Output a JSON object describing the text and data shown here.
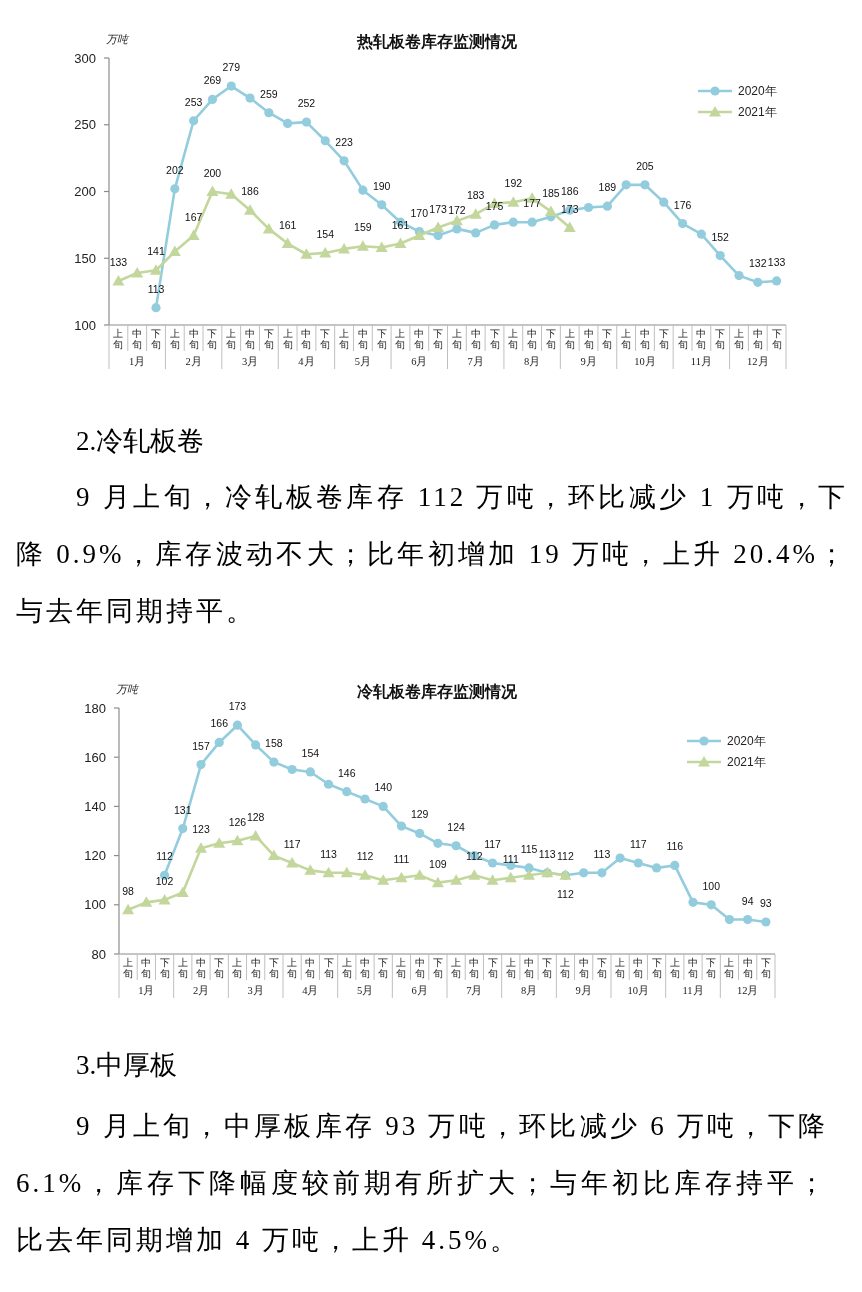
{
  "chart_data": [
    {
      "type": "line",
      "title": "热轧板卷库存监测情况",
      "ylabel": "万吨",
      "legend": "top right",
      "categories": [
        "上旬",
        "中旬",
        "下旬",
        "上旬",
        "中旬",
        "下旬",
        "上旬",
        "中旬",
        "下旬",
        "上旬",
        "中旬",
        "下旬",
        "上旬",
        "中旬",
        "下旬",
        "上旬",
        "中旬",
        "下旬",
        "上旬",
        "中旬",
        "下旬",
        "上旬",
        "中旬",
        "下旬",
        "上旬",
        "中旬",
        "下旬",
        "上旬",
        "中旬",
        "下旬",
        "上旬",
        "中旬",
        "下旬",
        "上旬",
        "中旬",
        "下旬"
      ],
      "ylim": [
        100,
        300
      ],
      "yticks": [
        100,
        150,
        200,
        250,
        300
      ],
      "series": [
        {
          "name": "2020年",
          "color": "#93cddd",
          "marker": "circle",
          "values": [
            null,
            null,
            113,
            202,
            253,
            269,
            279,
            270,
            259,
            251,
            252,
            238,
            223,
            201,
            190,
            177,
            170,
            167,
            172,
            169,
            175,
            177,
            177,
            181,
            186,
            188,
            189,
            205,
            205,
            192,
            176,
            168,
            152,
            137,
            132,
            133
          ],
          "value_labels": [
            null,
            null,
            "113",
            "202",
            "253",
            "269",
            "279",
            null,
            "259",
            null,
            "252",
            null,
            "223",
            null,
            "190",
            null,
            "170",
            null,
            "172",
            null,
            "175",
            null,
            "177",
            null,
            "186",
            null,
            "189",
            null,
            "205",
            null,
            "176",
            null,
            "152",
            null,
            "132",
            "133"
          ]
        },
        {
          "name": "2021年",
          "color": "#c3d69b",
          "marker": "triangle",
          "values": [
            133,
            139,
            141,
            155,
            167,
            200,
            198,
            186,
            172,
            161,
            153,
            154,
            157,
            159,
            158,
            161,
            167,
            173,
            178,
            183,
            191,
            192,
            195,
            185,
            173,
            null,
            null,
            null,
            null,
            null,
            null,
            null,
            null,
            null,
            null,
            null
          ],
          "value_labels": [
            "133",
            null,
            "141",
            null,
            "167",
            "200",
            null,
            "186",
            null,
            "161",
            null,
            "154",
            null,
            "159",
            null,
            "161",
            null,
            "173",
            null,
            "183",
            null,
            "192",
            null,
            "185",
            "173",
            null,
            null,
            null,
            null,
            null,
            null,
            null,
            null,
            null,
            null,
            null
          ]
        }
      ],
      "annotations": [
        "1月",
        "2月",
        "3月",
        "4月",
        "5月",
        "6月",
        "7月",
        "8月",
        "9月",
        "10月",
        "11月",
        "12月",
        "2.冷轧板卷",
        "9 月上旬，冷轧板卷库存 112 万吨，环比减少 1 万吨，下降 0.9%，库存波动不大；比年初增加 19 万吨，上升 20.4%；与去年同期持平。"
      ]
    },
    {
      "type": "line",
      "title": "冷轧板卷库存监测情况",
      "ylabel": "万吨",
      "legend": "top right",
      "categories": [
        "上旬",
        "中旬",
        "下旬",
        "上旬",
        "中旬",
        "下旬",
        "上旬",
        "中旬",
        "下旬",
        "上旬",
        "中旬",
        "下旬",
        "上旬",
        "中旬",
        "下旬",
        "上旬",
        "中旬",
        "下旬",
        "上旬",
        "中旬",
        "下旬",
        "上旬",
        "中旬",
        "下旬",
        "上旬",
        "中旬",
        "下旬",
        "上旬",
        "中旬",
        "下旬",
        "上旬",
        "中旬",
        "下旬",
        "上旬",
        "中旬",
        "下旬"
      ],
      "ylim": [
        80,
        180
      ],
      "yticks": [
        80,
        100,
        120,
        140,
        160,
        180
      ],
      "series": [
        {
          "name": "2020年",
          "color": "#93cddd",
          "marker": "circle",
          "values": [
            null,
            null,
            112,
            131,
            157,
            166,
            173,
            165,
            158,
            155,
            154,
            149,
            146,
            143,
            140,
            132,
            129,
            125,
            124,
            120,
            117,
            116,
            115,
            113,
            112,
            113,
            113,
            119,
            117,
            115,
            116,
            101,
            100,
            94,
            94,
            93
          ],
          "value_labels": [
            null,
            null,
            "112",
            "131",
            "157",
            "166",
            "173",
            null,
            "158",
            null,
            "154",
            null,
            "146",
            null,
            "140",
            null,
            "129",
            null,
            "124",
            null,
            "117",
            null,
            "115",
            null,
            "112",
            null,
            "113",
            null,
            "117",
            null,
            "116",
            null,
            "100",
            null,
            "94",
            "93"
          ]
        },
        {
          "name": "2021年",
          "color": "#c3d69b",
          "marker": "triangle",
          "values": [
            98,
            101,
            102,
            105,
            123,
            125,
            126,
            128,
            120,
            117,
            114,
            113,
            113,
            112,
            110,
            111,
            112,
            109,
            110,
            112,
            110,
            111,
            112,
            113,
            112,
            null,
            null,
            null,
            null,
            null,
            null,
            null,
            null,
            null,
            null,
            null
          ],
          "value_labels": [
            "98",
            null,
            "102",
            null,
            "123",
            null,
            "126",
            "128",
            null,
            "117",
            null,
            "113",
            null,
            "112",
            null,
            "111",
            null,
            "109",
            null,
            "112",
            null,
            "111",
            null,
            "113",
            "112",
            null,
            null,
            null,
            null,
            null,
            null,
            null,
            null,
            null,
            null,
            null
          ]
        }
      ],
      "annotations": [
        "1月",
        "2月",
        "3月",
        "4月",
        "5月",
        "6月",
        "7月",
        "8月",
        "9月",
        "10月",
        "11月",
        "12月",
        "3.中厚板",
        "9 月上旬，中厚板库存 93 万吨，环比减少 6 万吨，下降 6.1%，库存下降幅度较前期有所扩大；与年初比库存持平；比去年同期增加 4 万吨，上升 4.5%。"
      ]
    }
  ]
}
